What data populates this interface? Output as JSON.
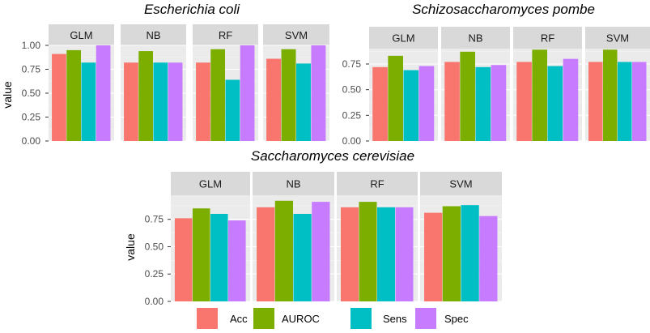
{
  "legend": {
    "items": [
      {
        "label": "Acc",
        "color": "#F8766D"
      },
      {
        "label": "AUROC",
        "color": "#7CAE00"
      },
      {
        "label": "Sens",
        "color": "#00BFC4"
      },
      {
        "label": "Spec",
        "color": "#C77CFF"
      }
    ]
  },
  "chart_data": [
    {
      "type": "bar",
      "title": "Escherichia coli",
      "ylabel": "value",
      "ylim": [
        0,
        1.0
      ],
      "yticks": [
        "0.00",
        "0.25",
        "0.50",
        "0.75",
        "1.00"
      ],
      "facets": [
        "GLM",
        "NB",
        "RF",
        "SVM"
      ],
      "categories": [
        "Acc",
        "AUROC",
        "Sens",
        "Spec"
      ],
      "values": [
        [
          0.91,
          0.95,
          0.82,
          1.0
        ],
        [
          0.82,
          0.94,
          0.82,
          0.82
        ],
        [
          0.82,
          0.96,
          0.64,
          1.0
        ],
        [
          0.86,
          0.96,
          0.81,
          1.0
        ]
      ]
    },
    {
      "type": "bar",
      "title": "Schizosaccharomyces pombe",
      "ylabel": "",
      "ylim": [
        0,
        0.9
      ],
      "yticks": [
        "0.00",
        "0.25",
        "0.50",
        "0.75"
      ],
      "facets": [
        "GLM",
        "NB",
        "RF",
        "SVM"
      ],
      "categories": [
        "Acc",
        "AUROC",
        "Sens",
        "Spec"
      ],
      "values": [
        [
          0.72,
          0.83,
          0.69,
          0.73
        ],
        [
          0.77,
          0.87,
          0.72,
          0.74
        ],
        [
          0.77,
          0.89,
          0.73,
          0.8
        ],
        [
          0.77,
          0.89,
          0.77,
          0.77
        ]
      ]
    },
    {
      "type": "bar",
      "title": "Saccharomyces cerevisiae",
      "ylabel": "value",
      "ylim": [
        0,
        0.97
      ],
      "yticks": [
        "0.00",
        "0.25",
        "0.50",
        "0.75"
      ],
      "facets": [
        "GLM",
        "NB",
        "RF",
        "SVM"
      ],
      "categories": [
        "Acc",
        "AUROC",
        "Sens",
        "Spec"
      ],
      "values": [
        [
          0.76,
          0.85,
          0.8,
          0.74
        ],
        [
          0.86,
          0.92,
          0.8,
          0.91
        ],
        [
          0.86,
          0.91,
          0.86,
          0.86
        ],
        [
          0.81,
          0.87,
          0.88,
          0.78
        ]
      ]
    }
  ]
}
